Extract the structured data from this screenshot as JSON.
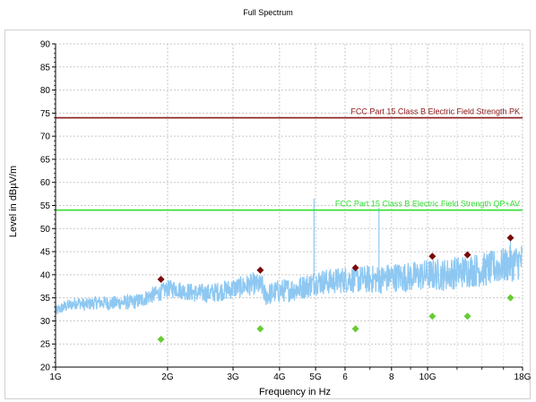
{
  "chart_data": {
    "type": "line",
    "title": "Full Spectrum",
    "xlabel": "Frequency in Hz",
    "ylabel": "Level in dBµV/m",
    "xscale": "log",
    "xlim": [
      1000000000,
      18000000000
    ],
    "ylim": [
      20,
      90
    ],
    "grid": true,
    "y_ticks": [
      20,
      25,
      30,
      35,
      40,
      45,
      50,
      55,
      60,
      65,
      70,
      75,
      80,
      85,
      90
    ],
    "x_major_ticks": [
      {
        "value": 1000000000,
        "label": "1G"
      },
      {
        "value": 2000000000,
        "label": "2G"
      },
      {
        "value": 3000000000,
        "label": "3G"
      },
      {
        "value": 4000000000,
        "label": "4G"
      },
      {
        "value": 5000000000,
        "label": "5G"
      },
      {
        "value": 6000000000,
        "label": "6"
      },
      {
        "value": 8000000000,
        "label": "8"
      },
      {
        "value": 10000000000,
        "label": "10G"
      },
      {
        "value": 18000000000,
        "label": "18G"
      }
    ],
    "x_minor_ticks": [
      7000000000,
      9000000000,
      12000000000,
      14000000000,
      16000000000
    ],
    "limit_lines": [
      {
        "name": "FCC Part 15 Class B Electric Field Strength PK",
        "value": 74,
        "color": "#8b1a1a"
      },
      {
        "name": "FCC Part 15 Class B Electric Field Strength QP+AV",
        "value": 54,
        "color": "#33dd33"
      }
    ],
    "spectrum": {
      "color": "#8ec8f2",
      "points": [
        [
          1000000000,
          32
        ],
        [
          1050000000,
          33
        ],
        [
          1100000000,
          33.5
        ],
        [
          1150000000,
          34
        ],
        [
          1200000000,
          33.5
        ],
        [
          1300000000,
          34
        ],
        [
          1400000000,
          33.8
        ],
        [
          1500000000,
          34
        ],
        [
          1600000000,
          34
        ],
        [
          1700000000,
          34.5
        ],
        [
          1800000000,
          35.5
        ],
        [
          1900000000,
          36
        ],
        [
          2000000000,
          37
        ],
        [
          2100000000,
          37
        ],
        [
          2200000000,
          36.5
        ],
        [
          2400000000,
          36
        ],
        [
          2600000000,
          36
        ],
        [
          2800000000,
          36.5
        ],
        [
          3000000000,
          37
        ],
        [
          3200000000,
          37.5
        ],
        [
          3400000000,
          38
        ],
        [
          3600000000,
          37.5
        ],
        [
          3650000000,
          35.5
        ],
        [
          3800000000,
          36
        ],
        [
          4000000000,
          36.5
        ],
        [
          4500000000,
          37
        ],
        [
          4900000000,
          38
        ],
        [
          5000000000,
          38.5
        ],
        [
          5500000000,
          38.5
        ],
        [
          6000000000,
          39
        ],
        [
          6500000000,
          39
        ],
        [
          7000000000,
          39
        ],
        [
          7500000000,
          39
        ],
        [
          8000000000,
          39.5
        ],
        [
          9000000000,
          39.5
        ],
        [
          10000000000,
          40
        ],
        [
          11000000000,
          40
        ],
        [
          12000000000,
          40.5
        ],
        [
          13000000000,
          41
        ],
        [
          14000000000,
          41
        ],
        [
          15000000000,
          41.5
        ],
        [
          16000000000,
          42
        ],
        [
          17000000000,
          42.5
        ],
        [
          18000000000,
          43
        ]
      ],
      "spikes": [
        [
          4950000000,
          56.5
        ],
        [
          7400000000,
          54.5
        ],
        [
          16700000000,
          48
        ]
      ]
    },
    "markers": [
      {
        "series": "peak",
        "color": "#7a0a0a",
        "points": [
          [
            1920000000,
            39
          ],
          [
            3550000000,
            41
          ],
          [
            6400000000,
            41.5
          ],
          [
            10300000000,
            44
          ],
          [
            12800000000,
            44.3
          ],
          [
            16700000000,
            48
          ]
        ]
      },
      {
        "series": "average",
        "color": "#66cc33",
        "points": [
          [
            1920000000,
            26
          ],
          [
            3550000000,
            28.3
          ],
          [
            6400000000,
            28.3
          ],
          [
            10300000000,
            31
          ],
          [
            12800000000,
            31
          ],
          [
            16700000000,
            35
          ]
        ]
      }
    ]
  }
}
